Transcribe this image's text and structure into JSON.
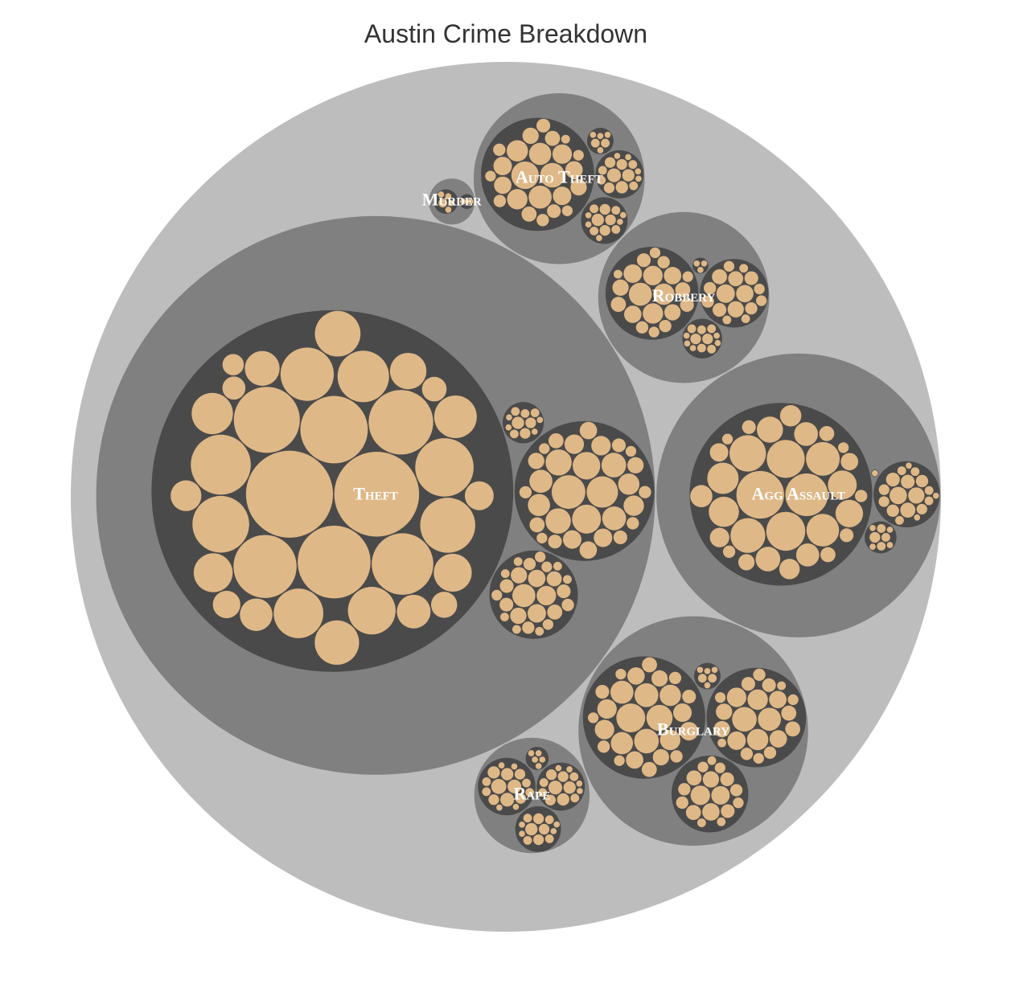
{
  "chart_data": {
    "type": "circle-packing",
    "title": "Austin Crime Breakdown",
    "colors": {
      "root": "#bdbdbd",
      "category": "#808080",
      "group": "#4a4a4a",
      "leaf": "#dfb887",
      "label": "#ffffff"
    },
    "categories": [
      {
        "name": "Theft",
        "groups": [
          {
            "leaves": [
              200,
              190,
              140,
              120,
              115,
              110,
              105,
              100,
              95,
              90,
              85,
              80,
              75,
              70,
              65,
              60,
              55,
              52,
              48,
              45,
              40,
              38,
              35,
              32,
              30,
              28,
              25,
              22,
              20,
              18,
              16,
              14,
              12
            ]
          },
          {
            "leaves": [
              30,
              26,
              22,
              20,
              18,
              17,
              16,
              15,
              14,
              13,
              12,
              11,
              10,
              10,
              9,
              9,
              8,
              8,
              7,
              7,
              6,
              6,
              5,
              5,
              5,
              4,
              4,
              4,
              3,
              3,
              3
            ]
          },
          {
            "leaves": [
              14,
              10,
              9,
              8,
              7,
              7,
              6,
              6,
              5,
              5,
              5,
              4,
              4,
              4,
              3,
              3,
              3,
              3,
              2,
              2,
              2,
              2,
              2,
              2,
              2
            ]
          },
          {
            "leaves": [
              4,
              3,
              3,
              2,
              2,
              2,
              2,
              1,
              1,
              1,
              1
            ]
          }
        ]
      },
      {
        "name": "Agg Assault",
        "groups": [
          {
            "leaves": [
              60,
              48,
              40,
              38,
              35,
              32,
              30,
              28,
              26,
              24,
              22,
              20,
              18,
              16,
              15,
              14,
              13,
              12,
              11,
              10,
              9,
              8,
              7,
              6,
              6,
              5,
              5,
              4,
              4,
              3,
              3
            ]
          },
          {
            "leaves": [
              8,
              7,
              6,
              5,
              5,
              4,
              4,
              3,
              3,
              3,
              2,
              2,
              2,
              2,
              2,
              1,
              1,
              1
            ]
          },
          {
            "leaves": [
              3,
              2,
              2,
              2,
              1,
              1,
              1,
              1
            ]
          },
          {
            "leaves": [
              1
            ]
          }
        ]
      },
      {
        "name": "Burglary",
        "groups": [
          {
            "leaves": [
              22,
              18,
              16,
              15,
              14,
              13,
              12,
              11,
              10,
              10,
              9,
              9,
              8,
              8,
              7,
              7,
              6,
              6,
              5,
              5,
              4,
              4,
              4,
              3,
              3,
              3
            ]
          },
          {
            "leaves": [
              16,
              14,
              12,
              11,
              10,
              9,
              8,
              8,
              7,
              7,
              6,
              6,
              5,
              5,
              4,
              4,
              4,
              3,
              3,
              3,
              2,
              2
            ]
          },
          {
            "leaves": [
              10,
              9,
              8,
              7,
              6,
              6,
              5,
              5,
              4,
              4,
              4,
              3,
              3,
              3,
              2,
              2,
              2
            ]
          },
          {
            "leaves": [
              2,
              2,
              1,
              1,
              1,
              1
            ]
          }
        ]
      },
      {
        "name": "Auto Theft",
        "groups": [
          {
            "leaves": [
              20,
              16,
              14,
              13,
              12,
              11,
              10,
              9,
              9,
              8,
              8,
              7,
              7,
              6,
              6,
              5,
              5,
              4,
              4,
              4,
              3,
              3,
              3,
              2
            ]
          },
          {
            "leaves": [
              5,
              4,
              4,
              3,
              3,
              3,
              2,
              2,
              2,
              2,
              1,
              1,
              1,
              1
            ]
          },
          {
            "leaves": [
              4,
              3,
              3,
              3,
              2,
              2,
              2,
              2,
              1,
              1,
              1,
              1,
              1
            ]
          },
          {
            "leaves": [
              2,
              2,
              1,
              1,
              1,
              1
            ]
          }
        ]
      },
      {
        "name": "Robbery",
        "groups": [
          {
            "leaves": [
              14,
              12,
              11,
              10,
              9,
              8,
              8,
              7,
              7,
              6,
              6,
              5,
              5,
              4,
              4,
              4,
              3,
              3,
              3,
              2
            ]
          },
          {
            "leaves": [
              9,
              8,
              7,
              6,
              6,
              5,
              5,
              4,
              4,
              4,
              3,
              3,
              3,
              2,
              2,
              2
            ]
          },
          {
            "leaves": [
              3,
              3,
              2,
              2,
              2,
              2,
              2,
              1,
              1,
              1,
              1,
              1
            ]
          },
          {
            "leaves": [
              1,
              1,
              1
            ]
          }
        ]
      },
      {
        "name": "Rape",
        "groups": [
          {
            "leaves": [
              6,
              5,
              5,
              4,
              4,
              3,
              3,
              3,
              2,
              2,
              2,
              2,
              1,
              1,
              1,
              1
            ]
          },
          {
            "leaves": [
              5,
              4,
              4,
              3,
              3,
              3,
              2,
              2,
              2,
              2,
              1,
              1,
              1,
              1
            ]
          },
          {
            "leaves": [
              4,
              3,
              3,
              3,
              2,
              2,
              2,
              2,
              1,
              1,
              1,
              1
            ]
          },
          {
            "leaves": [
              1,
              1,
              1,
              1,
              1
            ]
          }
        ]
      },
      {
        "name": "Murder",
        "groups": [
          {
            "leaves": [
              2,
              1,
              1,
              1,
              1
            ]
          },
          {
            "leaves": [
              1,
              1
            ]
          }
        ]
      }
    ]
  }
}
